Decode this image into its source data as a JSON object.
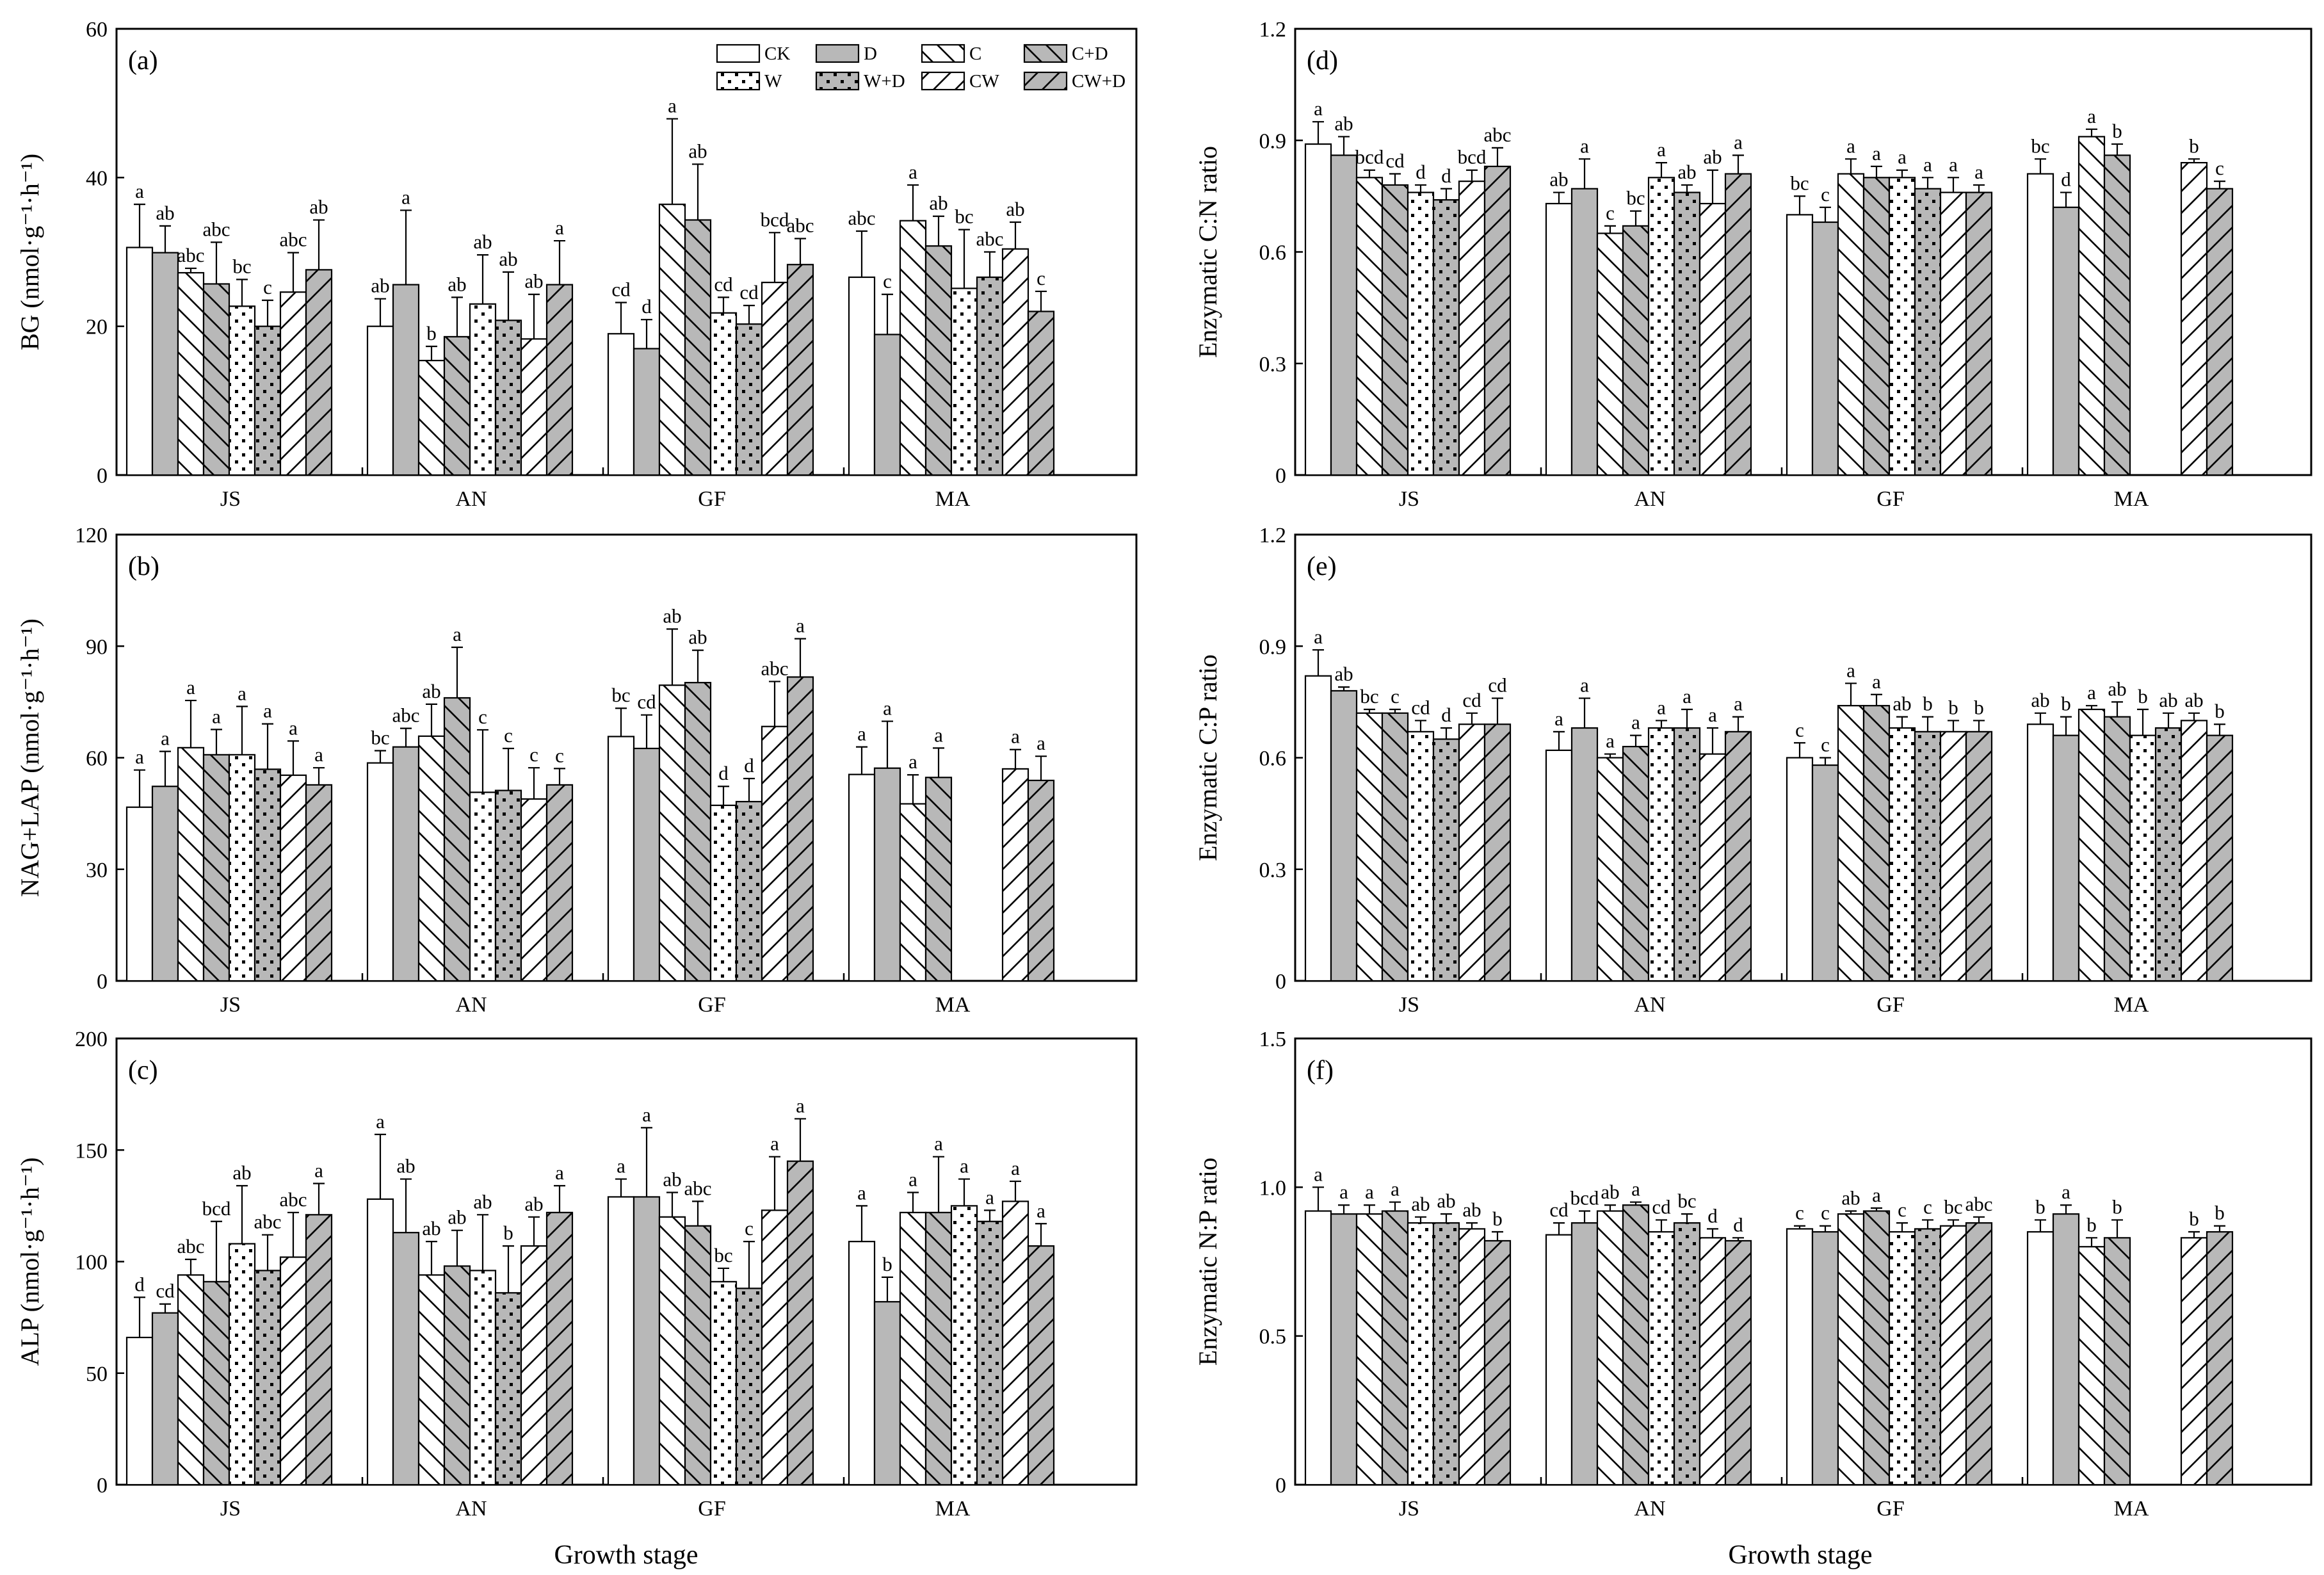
{
  "figure": {
    "treatments": [
      {
        "key": "CK",
        "label": "CK",
        "fill": "#ffffff",
        "pattern": "none"
      },
      {
        "key": "D",
        "label": "D",
        "fill": "#b8b8b8",
        "pattern": "none"
      },
      {
        "key": "C",
        "label": "C",
        "fill": "#ffffff",
        "pattern": "back"
      },
      {
        "key": "C+D",
        "label": "C+D",
        "fill": "#b8b8b8",
        "pattern": "back"
      },
      {
        "key": "W",
        "label": "W",
        "fill": "#ffffff",
        "pattern": "dots"
      },
      {
        "key": "W+D",
        "label": "W+D",
        "fill": "#b8b8b8",
        "pattern": "dots"
      },
      {
        "key": "CW",
        "label": "CW",
        "fill": "#ffffff",
        "pattern": "fwd"
      },
      {
        "key": "CW+D",
        "label": "CW+D",
        "fill": "#b8b8b8",
        "pattern": "fwd"
      }
    ],
    "colors": {
      "gray_fill": "#b8b8b8",
      "white_fill": "#ffffff",
      "stroke": "#000000"
    },
    "xlabel_left": "Growth stage",
    "xlabel_right": "Growth stage"
  },
  "chart_data": [
    {
      "id": "a",
      "tag": "(a)",
      "type": "bar",
      "ylabel": "BG (nmol·g⁻¹·h⁻¹)",
      "ylim": [
        0,
        60
      ],
      "yticks": [
        0,
        20,
        40,
        60
      ],
      "yticklabels": [
        "0",
        "20",
        "40",
        "60"
      ],
      "categories": [
        "JS",
        "AN",
        "GF",
        "MA"
      ],
      "legend": "top-right",
      "values": [
        [
          30.6,
          29.9,
          27.2,
          25.7,
          22.7,
          20.0,
          24.6,
          27.6
        ],
        [
          20.0,
          25.6,
          15.4,
          18.6,
          23.0,
          20.8,
          18.3,
          25.6
        ],
        [
          19.0,
          17.0,
          36.4,
          34.3,
          21.8,
          20.3,
          25.9,
          28.3
        ],
        [
          26.6,
          18.9,
          34.2,
          30.8,
          25.1,
          26.6,
          30.4,
          22.0
        ]
      ],
      "errors": [
        [
          5.8,
          3.6,
          0.6,
          5.6,
          3.6,
          3.5,
          5.3,
          6.7
        ],
        [
          3.7,
          10.0,
          1.9,
          5.3,
          6.6,
          6.5,
          6.0,
          5.9
        ],
        [
          4.2,
          3.9,
          11.5,
          7.5,
          2.1,
          2.5,
          6.7,
          3.5
        ],
        [
          6.2,
          5.4,
          4.8,
          4.0,
          7.9,
          3.4,
          3.6,
          2.7
        ]
      ],
      "letters": [
        [
          "a",
          "ab",
          "abc",
          "abc",
          "bc",
          "c",
          "abc",
          "ab"
        ],
        [
          "ab",
          "a",
          "b",
          "ab",
          "ab",
          "ab",
          "ab",
          "a"
        ],
        [
          "cd",
          "d",
          "a",
          "ab",
          "cd",
          "cd",
          "bcd",
          "abc"
        ],
        [
          "abc",
          "c",
          "a",
          "ab",
          "bc",
          "abc",
          "ab",
          "c"
        ]
      ]
    },
    {
      "id": "b",
      "tag": "(b)",
      "type": "bar",
      "ylabel": "NAG+LAP (nmol·g⁻¹·h⁻¹)",
      "ylim": [
        0,
        120
      ],
      "yticks": [
        0,
        30,
        60,
        90,
        120
      ],
      "yticklabels": [
        "0",
        "30",
        "60",
        "90",
        "120"
      ],
      "categories": [
        "JS",
        "AN",
        "GF",
        "MA"
      ],
      "values": [
        [
          46.7,
          52.3,
          62.7,
          60.8,
          60.8,
          56.9,
          55.3,
          52.7
        ],
        [
          58.6,
          62.9,
          65.8,
          76.1,
          50.7,
          51.2,
          48.9,
          52.7
        ],
        [
          65.7,
          62.5,
          79.5,
          80.2,
          47.2,
          48.2,
          68.4,
          81.7
        ],
        [
          55.5,
          57.2,
          47.6,
          54.7,
          null,
          null,
          57.0,
          53.9
        ]
      ],
      "errors": [
        [
          10.0,
          9.4,
          12.7,
          6.8,
          13.0,
          12.2,
          9.2,
          4.6
        ],
        [
          3.3,
          5.0,
          8.6,
          13.6,
          16.8,
          11.3,
          8.4,
          4.4
        ],
        [
          7.6,
          9.0,
          15.1,
          8.7,
          5.1,
          6.2,
          12.1,
          10.3
        ],
        [
          7.4,
          12.6,
          7.8,
          7.9,
          null,
          null,
          5.2,
          6.5
        ]
      ],
      "letters": [
        [
          "a",
          "a",
          "a",
          "a",
          "a",
          "a",
          "a",
          "a"
        ],
        [
          "bc",
          "abc",
          "ab",
          "a",
          "c",
          "c",
          "c",
          "c"
        ],
        [
          "bc",
          "cd",
          "ab",
          "ab",
          "d",
          "d",
          "abc",
          "a"
        ],
        [
          "a",
          "a",
          "a",
          "a",
          "",
          "",
          "a",
          "a"
        ]
      ]
    },
    {
      "id": "c",
      "tag": "(c)",
      "type": "bar",
      "ylabel": "ALP (nmol·g⁻¹·h⁻¹)",
      "ylim": [
        0,
        200
      ],
      "yticks": [
        0,
        50,
        100,
        150,
        200
      ],
      "yticklabels": [
        "0",
        "50",
        "100",
        "150",
        "200"
      ],
      "categories": [
        "JS",
        "AN",
        "GF",
        "MA"
      ],
      "values": [
        [
          66.0,
          77.0,
          94.0,
          91.0,
          108.0,
          96.0,
          102.0,
          121.0
        ],
        [
          128.0,
          113.0,
          94.0,
          98.0,
          96.0,
          86.0,
          107.0,
          122.0
        ],
        [
          129.0,
          129.0,
          120.0,
          116.0,
          91.0,
          88.0,
          123.0,
          145.0
        ],
        [
          109.0,
          82.0,
          122.0,
          122.0,
          125.0,
          118.0,
          127.0,
          107.0
        ]
      ],
      "errors": [
        [
          18.0,
          4.0,
          7.0,
          27.0,
          26.0,
          16.0,
          20.0,
          14.0
        ],
        [
          29.0,
          24.0,
          15.0,
          16.0,
          25.0,
          21.0,
          13.0,
          12.0
        ],
        [
          8.0,
          31.0,
          11.0,
          11.0,
          6.0,
          21.0,
          24.0,
          19.0
        ],
        [
          16.0,
          11.0,
          9.0,
          25.0,
          12.0,
          5.0,
          9.0,
          10.0
        ]
      ],
      "letters": [
        [
          "d",
          "cd",
          "abc",
          "bcd",
          "ab",
          "abc",
          "abc",
          "a"
        ],
        [
          "a",
          "ab",
          "ab",
          "ab",
          "ab",
          "b",
          "ab",
          "a"
        ],
        [
          "a",
          "a",
          "ab",
          "abc",
          "bc",
          "c",
          "a",
          "a"
        ],
        [
          "a",
          "b",
          "a",
          "a",
          "a",
          "a",
          "a",
          "a"
        ]
      ]
    },
    {
      "id": "d",
      "tag": "(d)",
      "type": "bar",
      "ylabel": "Enzymatic C:N ratio",
      "ylim": [
        0,
        1.2
      ],
      "yticks": [
        0,
        0.3,
        0.6,
        0.9,
        1.2
      ],
      "yticklabels": [
        "0",
        "0.3",
        "0.6",
        "0.9",
        "1.2"
      ],
      "categories": [
        "JS",
        "AN",
        "GF",
        "MA"
      ],
      "values": [
        [
          0.89,
          0.86,
          0.8,
          0.78,
          0.76,
          0.74,
          0.79,
          0.83
        ],
        [
          0.73,
          0.77,
          0.65,
          0.67,
          0.8,
          0.76,
          0.73,
          0.81
        ],
        [
          0.7,
          0.68,
          0.81,
          0.8,
          0.8,
          0.77,
          0.76,
          0.76
        ],
        [
          0.81,
          0.72,
          0.91,
          0.86,
          null,
          null,
          0.84,
          0.77
        ]
      ],
      "errors": [
        [
          0.06,
          0.05,
          0.02,
          0.03,
          0.02,
          0.03,
          0.03,
          0.05
        ],
        [
          0.03,
          0.08,
          0.02,
          0.04,
          0.04,
          0.02,
          0.09,
          0.05
        ],
        [
          0.05,
          0.04,
          0.04,
          0.03,
          0.02,
          0.03,
          0.04,
          0.02
        ],
        [
          0.04,
          0.04,
          0.02,
          0.03,
          null,
          null,
          0.01,
          0.02
        ]
      ],
      "letters": [
        [
          "a",
          "ab",
          "bcd",
          "cd",
          "d",
          "d",
          "bcd",
          "abc"
        ],
        [
          "ab",
          "a",
          "c",
          "bc",
          "a",
          "ab",
          "ab",
          "a"
        ],
        [
          "bc",
          "c",
          "a",
          "a",
          "a",
          "a",
          "a",
          "a"
        ],
        [
          "bc",
          "d",
          "a",
          "b",
          "",
          "",
          "b",
          "c"
        ]
      ]
    },
    {
      "id": "e",
      "tag": "(e)",
      "type": "bar",
      "ylabel": "Enzymatic C:P ratio",
      "ylim": [
        0,
        1.2
      ],
      "yticks": [
        0,
        0.3,
        0.6,
        0.9,
        1.2
      ],
      "yticklabels": [
        "0",
        "0.3",
        "0.6",
        "0.9",
        "1.2"
      ],
      "categories": [
        "JS",
        "AN",
        "GF",
        "MA"
      ],
      "values": [
        [
          0.82,
          0.78,
          0.72,
          0.72,
          0.67,
          0.65,
          0.69,
          0.69
        ],
        [
          0.62,
          0.68,
          0.6,
          0.63,
          0.68,
          0.68,
          0.61,
          0.67
        ],
        [
          0.6,
          0.58,
          0.74,
          0.74,
          0.68,
          0.67,
          0.67,
          0.67
        ],
        [
          0.69,
          0.66,
          0.73,
          0.71,
          0.66,
          0.68,
          0.7,
          0.66
        ]
      ],
      "errors": [
        [
          0.07,
          0.01,
          0.01,
          0.01,
          0.03,
          0.03,
          0.03,
          0.07
        ],
        [
          0.05,
          0.08,
          0.01,
          0.03,
          0.02,
          0.05,
          0.07,
          0.04
        ],
        [
          0.04,
          0.02,
          0.06,
          0.03,
          0.03,
          0.04,
          0.03,
          0.03
        ],
        [
          0.03,
          0.05,
          0.01,
          0.04,
          0.07,
          0.04,
          0.02,
          0.03
        ]
      ],
      "letters": [
        [
          "a",
          "ab",
          "bc",
          "c",
          "cd",
          "d",
          "cd",
          "cd"
        ],
        [
          "a",
          "a",
          "a",
          "a",
          "a",
          "a",
          "a",
          "a"
        ],
        [
          "c",
          "c",
          "a",
          "a",
          "ab",
          "b",
          "b",
          "b"
        ],
        [
          "ab",
          "b",
          "a",
          "ab",
          "b",
          "ab",
          "ab",
          "b"
        ]
      ]
    },
    {
      "id": "f",
      "tag": "(f)",
      "type": "bar",
      "ylabel": "Enzymatic N:P ratio",
      "ylim": [
        0,
        1.5
      ],
      "yticks": [
        0,
        0.5,
        1.0,
        1.5
      ],
      "yticklabels": [
        "0",
        "0.5",
        "1.0",
        "1.5"
      ],
      "categories": [
        "JS",
        "AN",
        "GF",
        "MA"
      ],
      "values": [
        [
          0.92,
          0.91,
          0.91,
          0.92,
          0.88,
          0.88,
          0.86,
          0.82
        ],
        [
          0.84,
          0.88,
          0.92,
          0.94,
          0.85,
          0.88,
          0.83,
          0.82
        ],
        [
          0.86,
          0.85,
          0.91,
          0.92,
          0.85,
          0.86,
          0.87,
          0.88
        ],
        [
          0.85,
          0.91,
          0.8,
          0.83,
          null,
          null,
          0.83,
          0.85
        ]
      ],
      "errors": [
        [
          0.08,
          0.03,
          0.03,
          0.03,
          0.02,
          0.03,
          0.02,
          0.03
        ],
        [
          0.04,
          0.04,
          0.02,
          0.01,
          0.04,
          0.03,
          0.03,
          0.01
        ],
        [
          0.01,
          0.02,
          0.01,
          0.01,
          0.03,
          0.03,
          0.02,
          0.02
        ],
        [
          0.04,
          0.03,
          0.03,
          0.06,
          null,
          null,
          0.02,
          0.02
        ]
      ],
      "letters": [
        [
          "a",
          "a",
          "a",
          "a",
          "ab",
          "ab",
          "ab",
          "b"
        ],
        [
          "cd",
          "bcd",
          "ab",
          "a",
          "cd",
          "bc",
          "d",
          "d"
        ],
        [
          "c",
          "c",
          "ab",
          "a",
          "c",
          "c",
          "bc",
          "abc"
        ],
        [
          "b",
          "a",
          "b",
          "b",
          "",
          "",
          "b",
          "b"
        ]
      ]
    }
  ]
}
